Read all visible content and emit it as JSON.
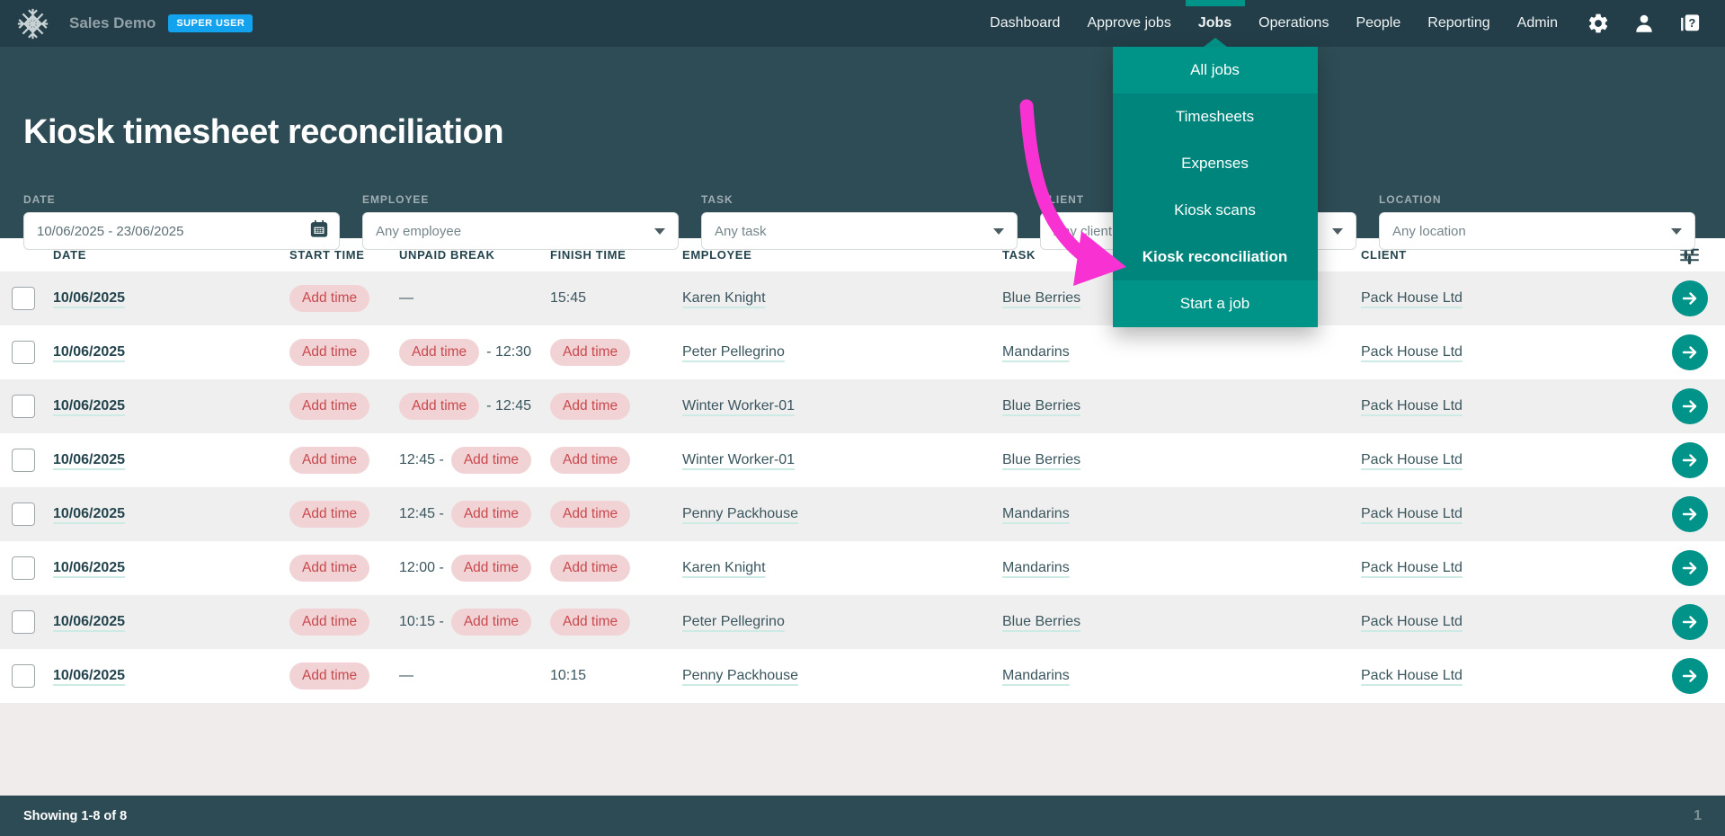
{
  "app": {
    "name": "Sales Demo",
    "badge": "SUPER USER"
  },
  "nav": {
    "items": [
      {
        "label": "Dashboard"
      },
      {
        "label": "Approve jobs"
      },
      {
        "label": "Jobs",
        "active": true
      },
      {
        "label": "Operations"
      },
      {
        "label": "People"
      },
      {
        "label": "Reporting"
      },
      {
        "label": "Admin"
      }
    ],
    "icons": [
      "settings-gear",
      "user-account",
      "help"
    ]
  },
  "jobs_menu": {
    "items": [
      {
        "label": "All jobs",
        "tone": "light"
      },
      {
        "label": "Timesheets",
        "tone": "dark"
      },
      {
        "label": "Expenses",
        "tone": "dark"
      },
      {
        "label": "Kiosk scans",
        "tone": "dark"
      },
      {
        "label": "Kiosk reconciliation",
        "tone": "dark",
        "active": true
      },
      {
        "label": "Start a job",
        "tone": "light"
      }
    ]
  },
  "page": {
    "title": "Kiosk timesheet reconciliation"
  },
  "filters": [
    {
      "label": "DATE",
      "value": "10/06/2025 - 23/06/2025",
      "type": "date"
    },
    {
      "label": "EMPLOYEE",
      "value": "Any employee",
      "type": "select"
    },
    {
      "label": "TASK",
      "value": "Any task",
      "type": "select"
    },
    {
      "label": "CLIENT",
      "value": "Any client",
      "type": "select"
    },
    {
      "label": "LOCATION",
      "value": "Any location",
      "type": "select"
    }
  ],
  "table": {
    "columns": [
      "DATE",
      "START TIME",
      "UNPAID BREAK",
      "FINISH TIME",
      "EMPLOYEE",
      "TASK",
      "CLIENT"
    ],
    "add_time_label": "Add time",
    "rows": [
      {
        "date": "10/06/2025",
        "start": {
          "type": "pill"
        },
        "unpaid_break": {
          "type": "dash"
        },
        "finish": {
          "type": "text",
          "text": "15:45"
        },
        "employee": "Karen Knight",
        "task": "Blue Berries",
        "client": "Pack House Ltd"
      },
      {
        "date": "10/06/2025",
        "start": {
          "type": "pill"
        },
        "unpaid_break": {
          "type": "pill_then_text",
          "text": "- 12:30"
        },
        "finish": {
          "type": "pill"
        },
        "employee": "Peter Pellegrino",
        "task": "Mandarins",
        "client": "Pack House Ltd"
      },
      {
        "date": "10/06/2025",
        "start": {
          "type": "pill"
        },
        "unpaid_break": {
          "type": "pill_then_text",
          "text": "- 12:45"
        },
        "finish": {
          "type": "pill"
        },
        "employee": "Winter Worker-01",
        "task": "Blue Berries",
        "client": "Pack House Ltd"
      },
      {
        "date": "10/06/2025",
        "start": {
          "type": "pill"
        },
        "unpaid_break": {
          "type": "text_then_pill",
          "text": "12:45 -"
        },
        "finish": {
          "type": "pill"
        },
        "employee": "Winter Worker-01",
        "task": "Blue Berries",
        "client": "Pack House Ltd"
      },
      {
        "date": "10/06/2025",
        "start": {
          "type": "pill"
        },
        "unpaid_break": {
          "type": "text_then_pill",
          "text": "12:45 -"
        },
        "finish": {
          "type": "pill"
        },
        "employee": "Penny Packhouse",
        "task": "Mandarins",
        "client": "Pack House Ltd"
      },
      {
        "date": "10/06/2025",
        "start": {
          "type": "pill"
        },
        "unpaid_break": {
          "type": "text_then_pill",
          "text": "12:00 -"
        },
        "finish": {
          "type": "pill"
        },
        "employee": "Karen Knight",
        "task": "Mandarins",
        "client": "Pack House Ltd"
      },
      {
        "date": "10/06/2025",
        "start": {
          "type": "pill"
        },
        "unpaid_break": {
          "type": "text_then_pill",
          "text": "10:15 -"
        },
        "finish": {
          "type": "pill"
        },
        "employee": "Peter Pellegrino",
        "task": "Blue Berries",
        "client": "Pack House Ltd"
      },
      {
        "date": "10/06/2025",
        "start": {
          "type": "pill"
        },
        "unpaid_break": {
          "type": "dash"
        },
        "finish": {
          "type": "text",
          "text": "10:15"
        },
        "employee": "Penny Packhouse",
        "task": "Mandarins",
        "client": "Pack House Ltd"
      }
    ]
  },
  "footer": {
    "showing": "Showing 1-8 of 8",
    "page": "1"
  },
  "colors": {
    "topbar_bg": "#233e48",
    "header_bg": "#2e4c55",
    "accent_green": "#009489",
    "menu_dark_green": "#00857c",
    "badge_blue": "#13a3ee",
    "pill_bg": "#f2d3d5",
    "pill_text": "#c8494e",
    "row_alt": "#f0efef",
    "underline": "#cdeae5",
    "text_dark": "#24454e",
    "annotation_magenta": "#f831d2"
  }
}
